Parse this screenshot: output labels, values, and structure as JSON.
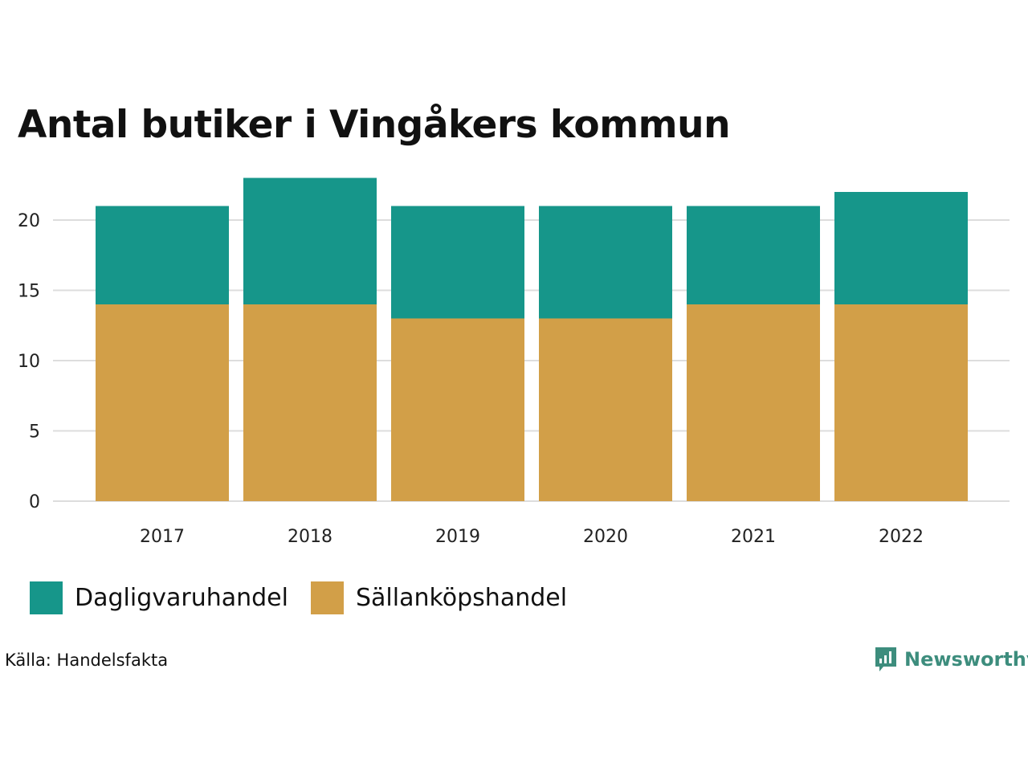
{
  "title": "Antal butiker i Vingåkers kommun",
  "source": "Källa: Handelsfakta",
  "brand": {
    "name": "Newsworthy",
    "icon": "bar-chart-speech-bubble-icon"
  },
  "colors": {
    "daglig": "#16968a",
    "sallan": "#d29f48",
    "grid": "#dddddd",
    "brand": "#3d8d7d"
  },
  "legend": [
    {
      "label": "Dagligvaruhandel",
      "color": "#16968a"
    },
    {
      "label": "Sällanköpshandel",
      "color": "#d29f48"
    }
  ],
  "chart_data": {
    "type": "bar",
    "stacked": true,
    "title": "Antal butiker i Vingåkers kommun",
    "categories": [
      "2017",
      "2018",
      "2019",
      "2020",
      "2021",
      "2022"
    ],
    "series": [
      {
        "name": "Sällanköpshandel",
        "values": [
          14,
          14,
          13,
          13,
          14,
          14
        ]
      },
      {
        "name": "Dagligvaruhandel",
        "values": [
          7,
          9,
          8,
          8,
          7,
          8
        ]
      }
    ],
    "yticks": [
      "0",
      "5",
      "10",
      "15",
      "20"
    ],
    "ylim": [
      0,
      23
    ],
    "xlabel": "",
    "ylabel": "",
    "grid": true,
    "legend_position": "bottom-left"
  }
}
